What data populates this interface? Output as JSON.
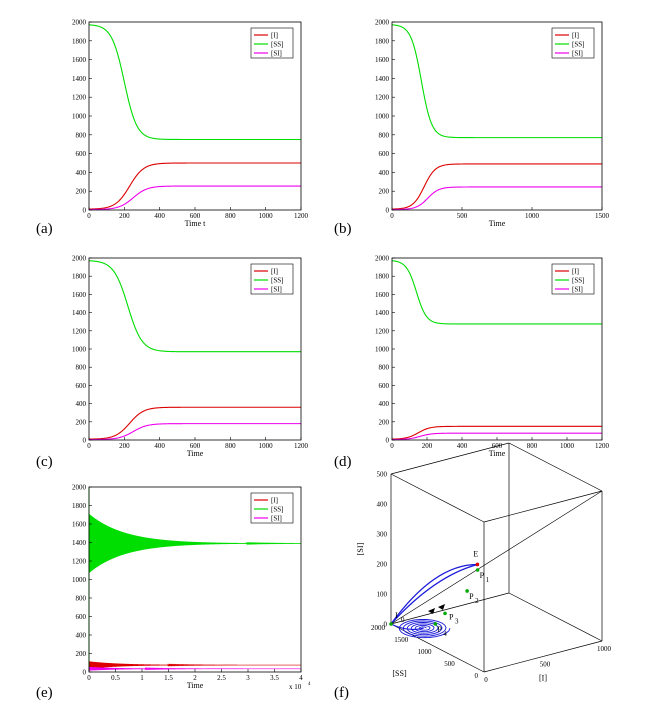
{
  "colors": {
    "I": "#dd0000",
    "SS": "#00dd00",
    "SI": "#ee00ee",
    "traj3d": "#1a1ad9",
    "axis": "#000000"
  },
  "chart_data": [
    {
      "panel": "(a)",
      "type": "line",
      "xlabel": "Time t",
      "ylabel": "",
      "xlim": [
        0,
        1200
      ],
      "ylim": [
        0,
        2000
      ],
      "xticks": [
        0,
        200,
        400,
        600,
        800,
        1000,
        1200
      ],
      "yticks": [
        0,
        200,
        400,
        600,
        800,
        1000,
        1200,
        1400,
        1600,
        1800,
        2000
      ],
      "series": [
        {
          "name": "[I]",
          "key": "I",
          "start": 10,
          "end": 500,
          "mid": 230,
          "k": 0.025
        },
        {
          "name": "[SS]",
          "key": "SS",
          "start": 1970,
          "end": 750,
          "mid": 200,
          "k": 0.028
        },
        {
          "name": "[SI]",
          "key": "SI",
          "start": 5,
          "end": 255,
          "mid": 250,
          "k": 0.025
        }
      ]
    },
    {
      "panel": "(b)",
      "type": "line",
      "xlabel": "Time",
      "ylabel": "",
      "xlim": [
        0,
        1500
      ],
      "ylim": [
        0,
        2000
      ],
      "xticks": [
        0,
        500,
        1000,
        1500
      ],
      "yticks": [
        0,
        200,
        400,
        600,
        800,
        1000,
        1200,
        1400,
        1600,
        1800,
        2000
      ],
      "series": [
        {
          "name": "[I]",
          "key": "I",
          "start": 10,
          "end": 490,
          "mid": 230,
          "k": 0.025
        },
        {
          "name": "[SS]",
          "key": "SS",
          "start": 1970,
          "end": 770,
          "mid": 210,
          "k": 0.027
        },
        {
          "name": "[SI]",
          "key": "SI",
          "start": 5,
          "end": 245,
          "mid": 255,
          "k": 0.025
        }
      ]
    },
    {
      "panel": "(c)",
      "type": "line",
      "xlabel": "Time",
      "ylabel": "",
      "xlim": [
        0,
        1200
      ],
      "ylim": [
        0,
        2000
      ],
      "xticks": [
        0,
        200,
        400,
        600,
        800,
        1000,
        1200
      ],
      "yticks": [
        0,
        200,
        400,
        600,
        800,
        1000,
        1200,
        1400,
        1600,
        1800,
        2000
      ],
      "series": [
        {
          "name": "[I]",
          "key": "I",
          "start": 10,
          "end": 360,
          "mid": 230,
          "k": 0.025
        },
        {
          "name": "[SS]",
          "key": "SS",
          "start": 1970,
          "end": 970,
          "mid": 220,
          "k": 0.025
        },
        {
          "name": "[SI]",
          "key": "SI",
          "start": 5,
          "end": 180,
          "mid": 250,
          "k": 0.025
        }
      ]
    },
    {
      "panel": "(d)",
      "type": "line",
      "xlabel": "Time",
      "ylabel": "",
      "xlim": [
        0,
        1200
      ],
      "ylim": [
        0,
        2000
      ],
      "xticks": [
        0,
        200,
        400,
        600,
        800,
        1000,
        1200
      ],
      "yticks": [
        0,
        200,
        400,
        600,
        800,
        1000,
        1200,
        1400,
        1600,
        1800,
        2000
      ],
      "series": [
        {
          "name": "[I]",
          "key": "I",
          "start": 10,
          "end": 150,
          "mid": 150,
          "k": 0.03
        },
        {
          "name": "[SS]",
          "key": "SS",
          "start": 1970,
          "end": 1275,
          "mid": 140,
          "k": 0.035
        },
        {
          "name": "[SI]",
          "key": "SI",
          "start": 5,
          "end": 75,
          "mid": 160,
          "k": 0.03
        }
      ]
    },
    {
      "panel": "(e)",
      "type": "line",
      "xlabel": "Time",
      "ylabel": "",
      "xlim": [
        0,
        4
      ],
      "ylim": [
        0,
        2000
      ],
      "x_multiplier": "x 10",
      "x_multiplier_exp": "4",
      "xticks": [
        0,
        0.5,
        1,
        1.5,
        2,
        2.5,
        3,
        3.5,
        4
      ],
      "yticks": [
        0,
        200,
        400,
        600,
        800,
        1000,
        1200,
        1400,
        1600,
        1800,
        2000
      ],
      "series": [
        {
          "name": "[I]",
          "key": "I",
          "center": 75,
          "amp0": 40,
          "decay": 1.6
        },
        {
          "name": "[SS]",
          "key": "SS",
          "center": 1390,
          "amp0": 320,
          "decay": 1.5
        },
        {
          "name": "[SI]",
          "key": "SI",
          "center": 35,
          "amp0": 20,
          "decay": 1.6
        }
      ]
    },
    {
      "panel": "(f)",
      "type": "line3d",
      "xlabel": "[I]",
      "ylabel": "[SS]",
      "zlabel": "[SI]",
      "xlim": [
        0,
        1000
      ],
      "ylim": [
        0,
        2000
      ],
      "zlim": [
        0,
        500
      ],
      "xticks": [
        0,
        500,
        1000
      ],
      "yticks": [
        0,
        500,
        1000,
        1500,
        2000
      ],
      "zticks": [
        0,
        100,
        200,
        300,
        400,
        500
      ],
      "points": [
        {
          "name": "I",
          "sub": "0"
        },
        {
          "name": "E",
          "sub": ""
        },
        {
          "name": "P",
          "sub": "1"
        },
        {
          "name": "P",
          "sub": "2"
        },
        {
          "name": "P",
          "sub": "3"
        },
        {
          "name": "P",
          "sub": "4"
        }
      ]
    }
  ]
}
